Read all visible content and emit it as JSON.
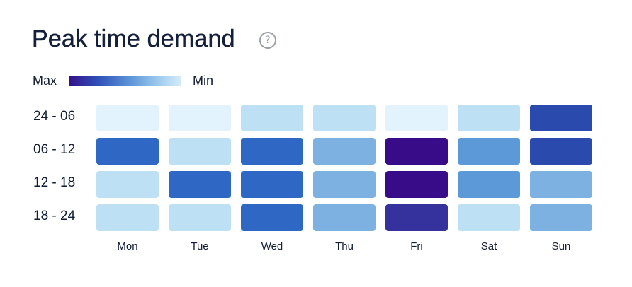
{
  "header": {
    "title": "Peak time demand",
    "help_icon": "question-circle-icon",
    "help_glyph": "?"
  },
  "legend": {
    "max_label": "Max",
    "min_label": "Min",
    "gradient_colors": [
      "#35128c",
      "#2f4fb8",
      "#5e97d8",
      "#9fcbee",
      "#d6ecf9"
    ]
  },
  "chart_data": {
    "type": "heatmap",
    "title": "Peak time demand",
    "x": [
      "Mon",
      "Tue",
      "Wed",
      "Thu",
      "Fri",
      "Sat",
      "Sun"
    ],
    "y": [
      "24 - 06",
      "06 - 12",
      "12 - 18",
      "18 - 24"
    ],
    "scale": [
      "Max",
      "Min"
    ],
    "values": [
      [
        1,
        1,
        2,
        2,
        1,
        2,
        7
      ],
      [
        6,
        2,
        6,
        3,
        9,
        4,
        7
      ],
      [
        2,
        6,
        6,
        3,
        9,
        4,
        3
      ],
      [
        2,
        2,
        6,
        3,
        8,
        2,
        3
      ]
    ],
    "value_range": [
      0,
      9
    ],
    "colors": {
      "1": "#e2f3fd",
      "2": "#bde0f5",
      "3": "#7cb1e2",
      "4": "#5b99d9",
      "6": "#2f68c4",
      "7": "#2b4aae",
      "8": "#35329d",
      "9": "#380c88"
    }
  }
}
